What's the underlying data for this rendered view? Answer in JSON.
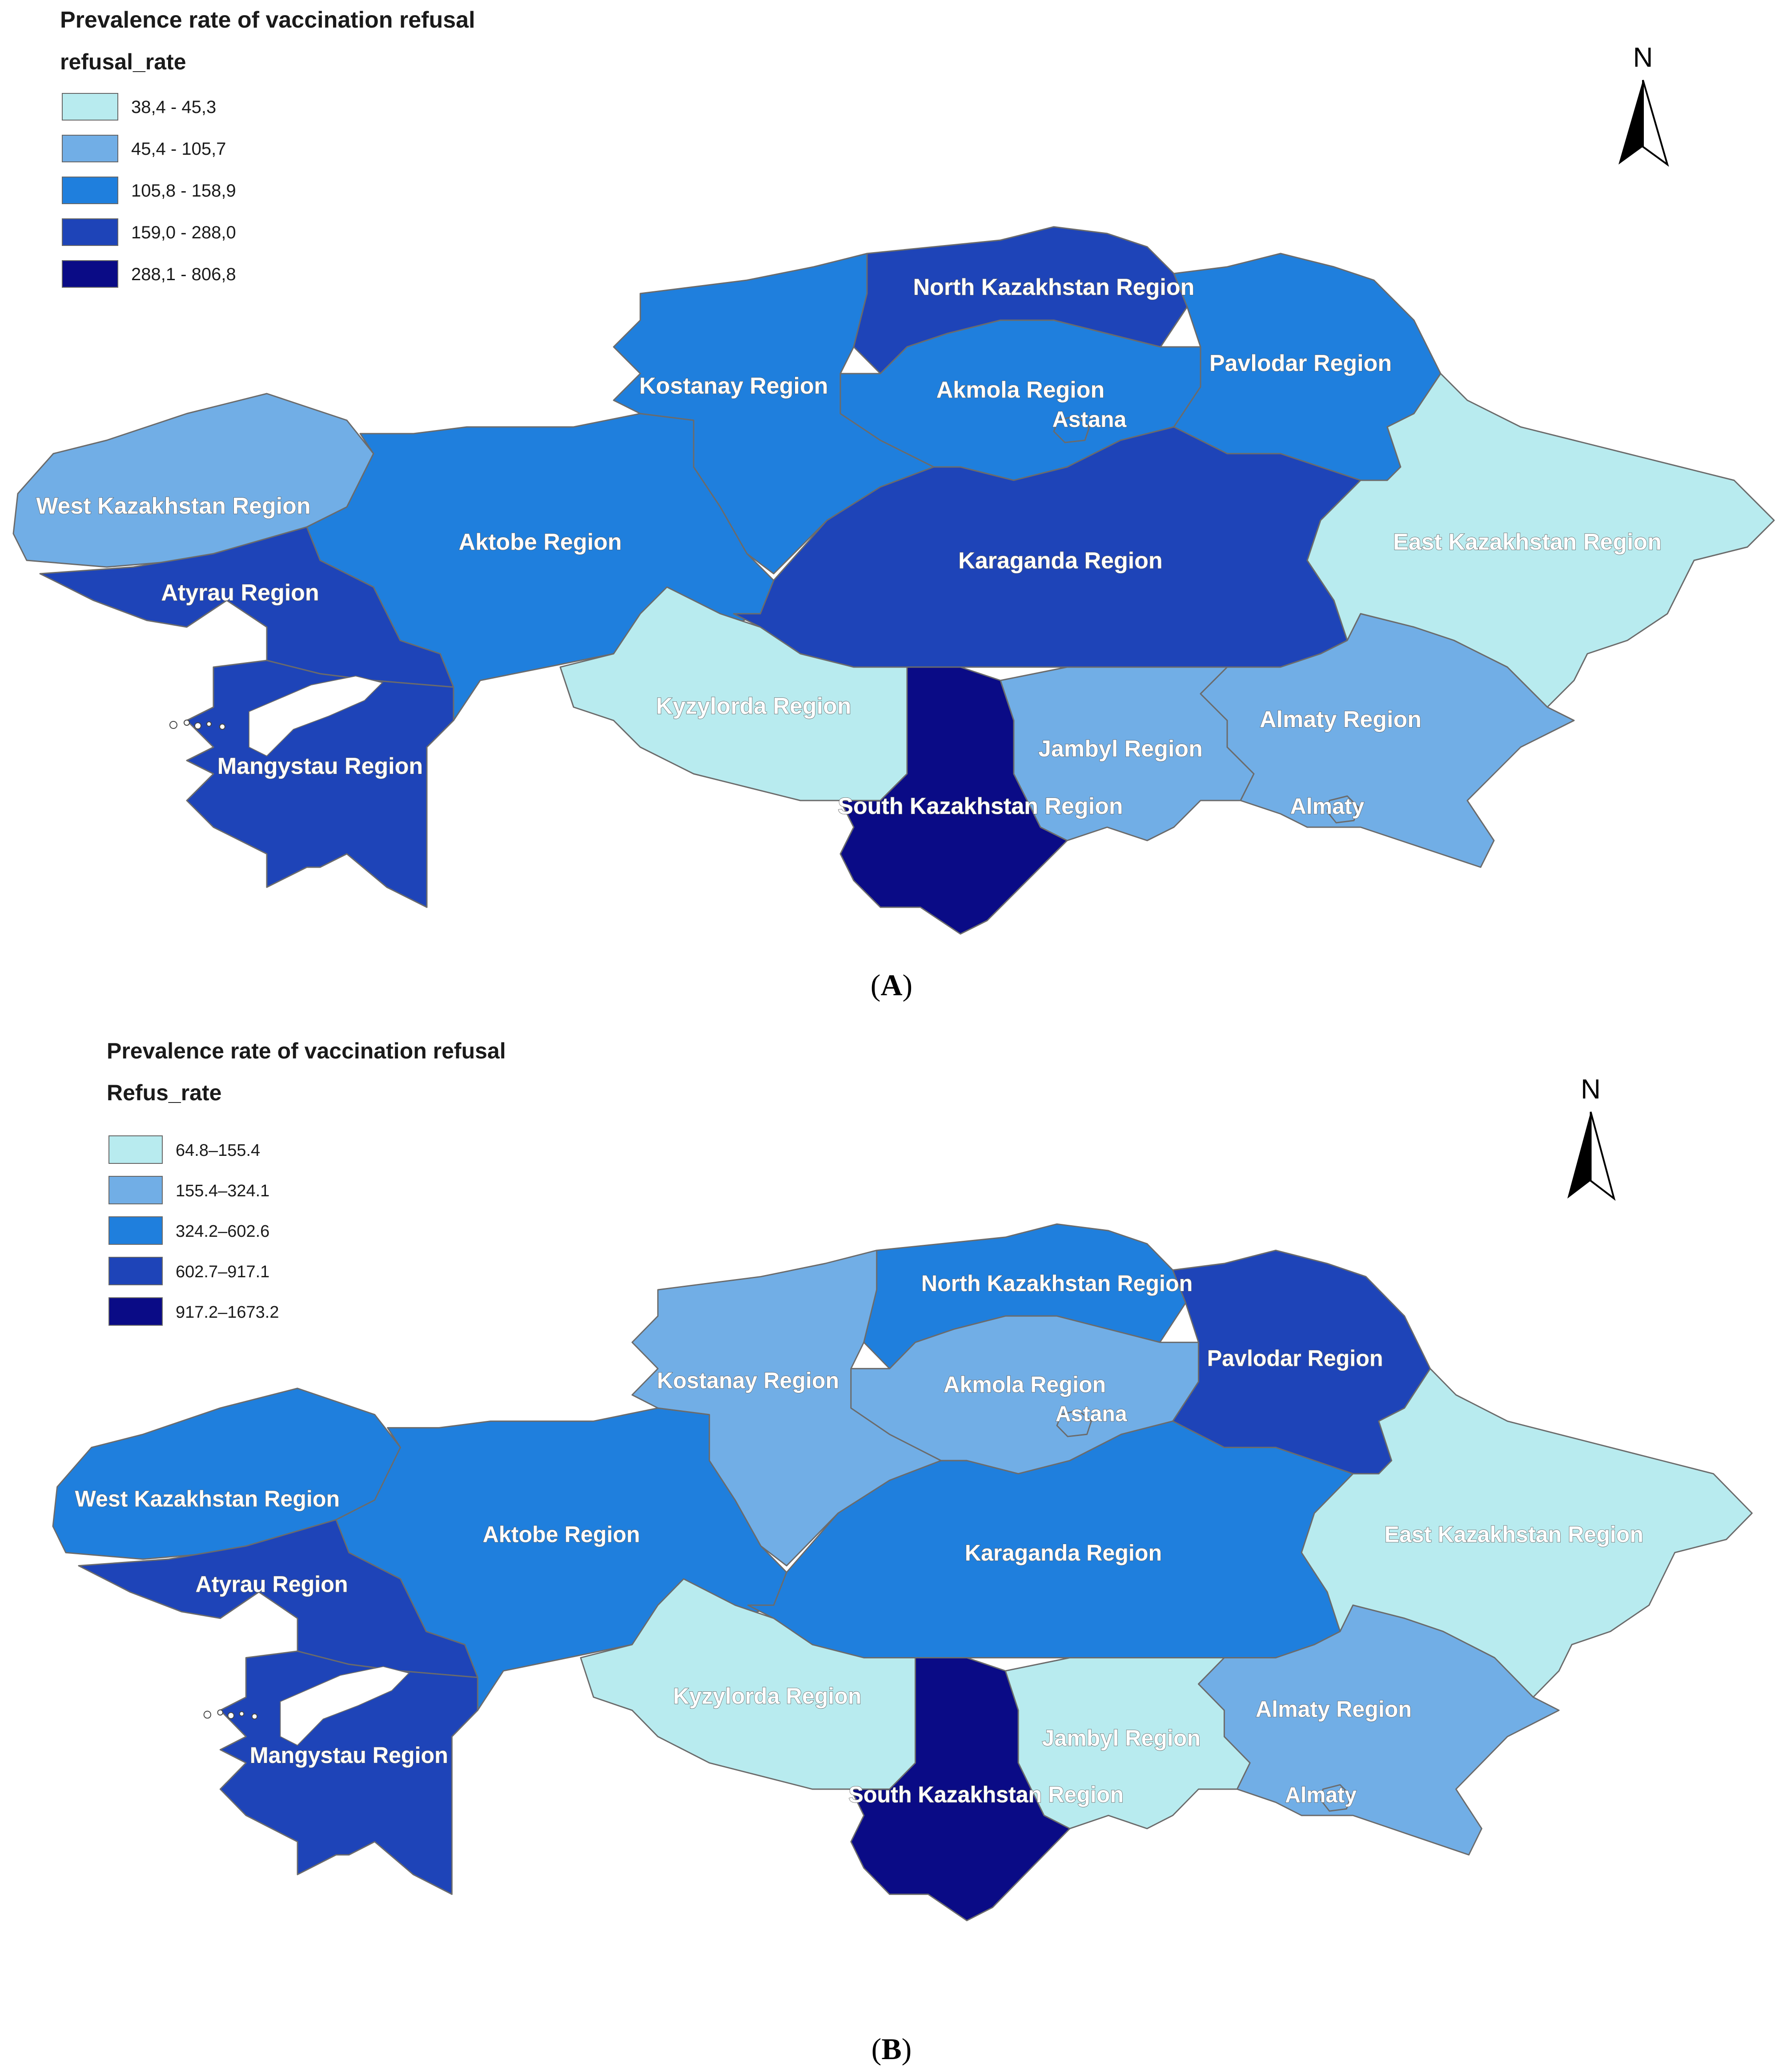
{
  "palette": [
    "#b8ebef",
    "#71aee6",
    "#1f7fdd",
    "#1e44b8",
    "#0a0b86"
  ],
  "panels": [
    {
      "caption": "A",
      "legend": {
        "title": "Prevalence rate of vaccination refusal",
        "field": "refusal_rate",
        "classes": [
          "38,4 - 45,3",
          "45,4 - 105,7",
          "105,8 - 158,9",
          "159,0 - 288,0",
          "288,1 - 806,8"
        ]
      },
      "north_label": "N",
      "regions": {
        "west_kazakhstan": {
          "label": "West Kazakhstan Region",
          "class": 1
        },
        "atyrau": {
          "label": "Atyrau Region",
          "class": 3
        },
        "mangystau": {
          "label": "Mangystau Region",
          "class": 3
        },
        "aktobe": {
          "label": "Aktobe Region",
          "class": 2
        },
        "kostanay": {
          "label": "Kostanay Region",
          "class": 2
        },
        "north_kazakhstan": {
          "label": "North Kazakhstan Region",
          "class": 3
        },
        "akmola": {
          "label": "Akmola Region",
          "class": 2
        },
        "astana": {
          "label": "Astana",
          "class": 2
        },
        "pavlodar": {
          "label": "Pavlodar Region",
          "class": 2
        },
        "karaganda": {
          "label": "Karaganda Region",
          "class": 3
        },
        "east_kazakhstan": {
          "label": "East Kazakhstan Region",
          "class": 0
        },
        "kyzylorda": {
          "label": "Kyzylorda Region",
          "class": 0
        },
        "south_kazakhstan": {
          "label": "South Kazakhstan Region",
          "class": 4
        },
        "jambyl": {
          "label": "Jambyl Region",
          "class": 1
        },
        "almaty_region": {
          "label": "Almaty Region",
          "class": 1
        },
        "almaty": {
          "label": "Almaty",
          "class": 1
        }
      }
    },
    {
      "caption": "B",
      "legend": {
        "title": "Prevalence rate of vaccination refusal",
        "field": "Refus_rate",
        "classes": [
          "64.8–155.4",
          "155.4–324.1",
          "324.2–602.6",
          "602.7–917.1",
          "917.2–1673.2"
        ]
      },
      "north_label": "N",
      "regions": {
        "west_kazakhstan": {
          "label": "West Kazakhstan Region",
          "class": 2
        },
        "atyrau": {
          "label": "Atyrau Region",
          "class": 3
        },
        "mangystau": {
          "label": "Mangystau Region",
          "class": 3
        },
        "aktobe": {
          "label": "Aktobe Region",
          "class": 2
        },
        "kostanay": {
          "label": "Kostanay Region",
          "class": 1
        },
        "north_kazakhstan": {
          "label": "North Kazakhstan Region",
          "class": 2
        },
        "akmola": {
          "label": "Akmola Region",
          "class": 1
        },
        "astana": {
          "label": "Astana",
          "class": 1
        },
        "pavlodar": {
          "label": "Pavlodar Region",
          "class": 3
        },
        "karaganda": {
          "label": "Karaganda Region",
          "class": 2
        },
        "east_kazakhstan": {
          "label": "East Kazakhstan Region",
          "class": 0
        },
        "kyzylorda": {
          "label": "Kyzylorda Region",
          "class": 0
        },
        "south_kazakhstan": {
          "label": "South Kazakhstan Region",
          "class": 4
        },
        "jambyl": {
          "label": "Jambyl Region",
          "class": 0
        },
        "almaty_region": {
          "label": "Almaty Region",
          "class": 1
        },
        "almaty": {
          "label": "Almaty",
          "class": 1
        }
      }
    }
  ]
}
